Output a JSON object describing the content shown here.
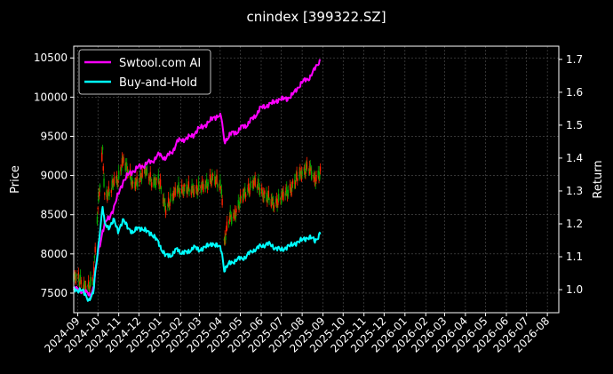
{
  "chart_data": {
    "type": "line",
    "title": "cnindex [399322.SZ]",
    "ylabel_left": "Price",
    "ylabel_right": "Return",
    "x_tick_labels": [
      "2024-09",
      "2024-10",
      "2024-11",
      "2024-12",
      "2025-01",
      "2025-02",
      "2025-03",
      "2025-04",
      "2025-05",
      "2025-06",
      "2025-07",
      "2025-08",
      "2025-09",
      "2025-10",
      "2025-11",
      "2025-12",
      "2026-01",
      "2026-02",
      "2026-03",
      "2026-04",
      "2026-05",
      "2026-06",
      "2026-07",
      "2026-08"
    ],
    "y_left_ticks": [
      7500,
      8000,
      8500,
      9000,
      9500,
      10000,
      10500
    ],
    "y_left_tick_labels": [
      "7500",
      "8000",
      "8500",
      "9000",
      "9500",
      "10000",
      "10500"
    ],
    "y_right_ticks": [
      1.0,
      1.1,
      1.2,
      1.3,
      1.4,
      1.5,
      1.6,
      1.7
    ],
    "y_right_tick_labels": [
      "1.0",
      "1.1",
      "1.2",
      "1.3",
      "1.4",
      "1.5",
      "1.6",
      "1.7"
    ],
    "ylim_left": [
      7250,
      10650
    ],
    "ylim_right": [
      0.93,
      1.74
    ],
    "grid": true,
    "legend_position": "top-left",
    "series": [
      {
        "name": "Swtool.com AI",
        "color": "#ff00ff",
        "axis": "right",
        "points": [
          [
            "2024-08-26",
            1.0
          ],
          [
            "2024-09-05",
            1.0
          ],
          [
            "2024-09-12",
            0.99
          ],
          [
            "2024-09-20",
            0.985
          ],
          [
            "2024-09-25",
            1.01
          ],
          [
            "2024-09-30",
            1.1
          ],
          [
            "2024-10-08",
            1.18
          ],
          [
            "2024-10-14",
            1.21
          ],
          [
            "2024-10-18",
            1.22
          ],
          [
            "2024-10-25",
            1.25
          ],
          [
            "2024-10-31",
            1.29
          ],
          [
            "2024-11-08",
            1.33
          ],
          [
            "2024-11-15",
            1.35
          ],
          [
            "2024-11-22",
            1.36
          ],
          [
            "2024-11-29",
            1.37
          ],
          [
            "2024-12-10",
            1.38
          ],
          [
            "2024-12-20",
            1.39
          ],
          [
            "2024-12-31",
            1.41
          ],
          [
            "2025-01-10",
            1.4
          ],
          [
            "2025-01-20",
            1.42
          ],
          [
            "2025-01-27",
            1.45
          ],
          [
            "2025-02-10",
            1.46
          ],
          [
            "2025-02-20",
            1.47
          ],
          [
            "2025-02-28",
            1.49
          ],
          [
            "2025-03-10",
            1.5
          ],
          [
            "2025-03-20",
            1.52
          ],
          [
            "2025-03-31",
            1.53
          ],
          [
            "2025-04-03",
            1.52
          ],
          [
            "2025-04-07",
            1.45
          ],
          [
            "2025-04-15",
            1.47
          ],
          [
            "2025-04-25",
            1.48
          ],
          [
            "2025-05-09",
            1.5
          ],
          [
            "2025-05-20",
            1.52
          ],
          [
            "2025-05-30",
            1.55
          ],
          [
            "2025-06-10",
            1.56
          ],
          [
            "2025-06-20",
            1.57
          ],
          [
            "2025-06-30",
            1.58
          ],
          [
            "2025-07-10",
            1.58
          ],
          [
            "2025-07-21",
            1.6
          ],
          [
            "2025-07-31",
            1.63
          ],
          [
            "2025-08-10",
            1.64
          ],
          [
            "2025-08-20",
            1.67
          ],
          [
            "2025-08-28",
            1.7
          ]
        ]
      },
      {
        "name": "Buy-and-Hold",
        "color": "#00ffff",
        "axis": "right",
        "points": [
          [
            "2024-08-26",
            1.0
          ],
          [
            "2024-09-05",
            1.0
          ],
          [
            "2024-09-12",
            0.985
          ],
          [
            "2024-09-18",
            0.97
          ],
          [
            "2024-09-24",
            0.985
          ],
          [
            "2024-09-27",
            1.05
          ],
          [
            "2024-10-08",
            1.25
          ],
          [
            "2024-10-11",
            1.2
          ],
          [
            "2024-10-18",
            1.19
          ],
          [
            "2024-10-25",
            1.21
          ],
          [
            "2024-10-31",
            1.18
          ],
          [
            "2024-11-08",
            1.21
          ],
          [
            "2024-11-15",
            1.19
          ],
          [
            "2024-11-22",
            1.17
          ],
          [
            "2024-11-29",
            1.19
          ],
          [
            "2024-12-10",
            1.18
          ],
          [
            "2024-12-20",
            1.17
          ],
          [
            "2024-12-31",
            1.14
          ],
          [
            "2025-01-10",
            1.1
          ],
          [
            "2025-01-20",
            1.11
          ],
          [
            "2025-01-27",
            1.12
          ],
          [
            "2025-02-10",
            1.11
          ],
          [
            "2025-02-20",
            1.13
          ],
          [
            "2025-02-28",
            1.12
          ],
          [
            "2025-03-10",
            1.13
          ],
          [
            "2025-03-20",
            1.14
          ],
          [
            "2025-03-31",
            1.13
          ],
          [
            "2025-04-03",
            1.12
          ],
          [
            "2025-04-07",
            1.06
          ],
          [
            "2025-04-15",
            1.08
          ],
          [
            "2025-04-25",
            1.09
          ],
          [
            "2025-05-09",
            1.1
          ],
          [
            "2025-05-20",
            1.12
          ],
          [
            "2025-05-30",
            1.13
          ],
          [
            "2025-06-10",
            1.14
          ],
          [
            "2025-06-20",
            1.13
          ],
          [
            "2025-06-30",
            1.12
          ],
          [
            "2025-07-10",
            1.13
          ],
          [
            "2025-07-21",
            1.14
          ],
          [
            "2025-07-31",
            1.15
          ],
          [
            "2025-08-10",
            1.16
          ],
          [
            "2025-08-20",
            1.15
          ],
          [
            "2025-08-28",
            1.17
          ]
        ]
      }
    ],
    "candles": {
      "axis": "left",
      "up_color": "#00aa00",
      "down_color": "#ff2200",
      "anchors": [
        [
          "2024-08-26",
          7700
        ],
        [
          "2024-09-05",
          7650
        ],
        [
          "2024-09-12",
          7600
        ],
        [
          "2024-09-18",
          7560
        ],
        [
          "2024-09-24",
          7650
        ],
        [
          "2024-09-30",
          8500
        ],
        [
          "2024-10-08",
          9300
        ],
        [
          "2024-10-11",
          8700
        ],
        [
          "2024-10-18",
          8800
        ],
        [
          "2024-10-25",
          8950
        ],
        [
          "2024-10-31",
          8900
        ],
        [
          "2024-11-08",
          9250
        ],
        [
          "2024-11-15",
          9050
        ],
        [
          "2024-11-22",
          8850
        ],
        [
          "2024-11-29",
          8950
        ],
        [
          "2024-12-10",
          9050
        ],
        [
          "2024-12-20",
          8950
        ],
        [
          "2024-12-31",
          8900
        ],
        [
          "2025-01-10",
          8600
        ],
        [
          "2025-01-20",
          8700
        ],
        [
          "2025-01-27",
          8850
        ],
        [
          "2025-02-10",
          8800
        ],
        [
          "2025-02-20",
          8850
        ],
        [
          "2025-02-28",
          8800
        ],
        [
          "2025-03-10",
          8900
        ],
        [
          "2025-03-20",
          8950
        ],
        [
          "2025-03-31",
          8900
        ],
        [
          "2025-04-03",
          8850
        ],
        [
          "2025-04-07",
          8150
        ],
        [
          "2025-04-15",
          8450
        ],
        [
          "2025-04-25",
          8550
        ],
        [
          "2025-05-09",
          8800
        ],
        [
          "2025-05-20",
          8900
        ],
        [
          "2025-05-30",
          8850
        ],
        [
          "2025-06-10",
          8700
        ],
        [
          "2025-06-20",
          8650
        ],
        [
          "2025-06-30",
          8700
        ],
        [
          "2025-07-10",
          8800
        ],
        [
          "2025-07-21",
          8900
        ],
        [
          "2025-07-31",
          9050
        ],
        [
          "2025-08-10",
          9100
        ],
        [
          "2025-08-20",
          8950
        ],
        [
          "2025-08-28",
          9050
        ]
      ]
    }
  }
}
